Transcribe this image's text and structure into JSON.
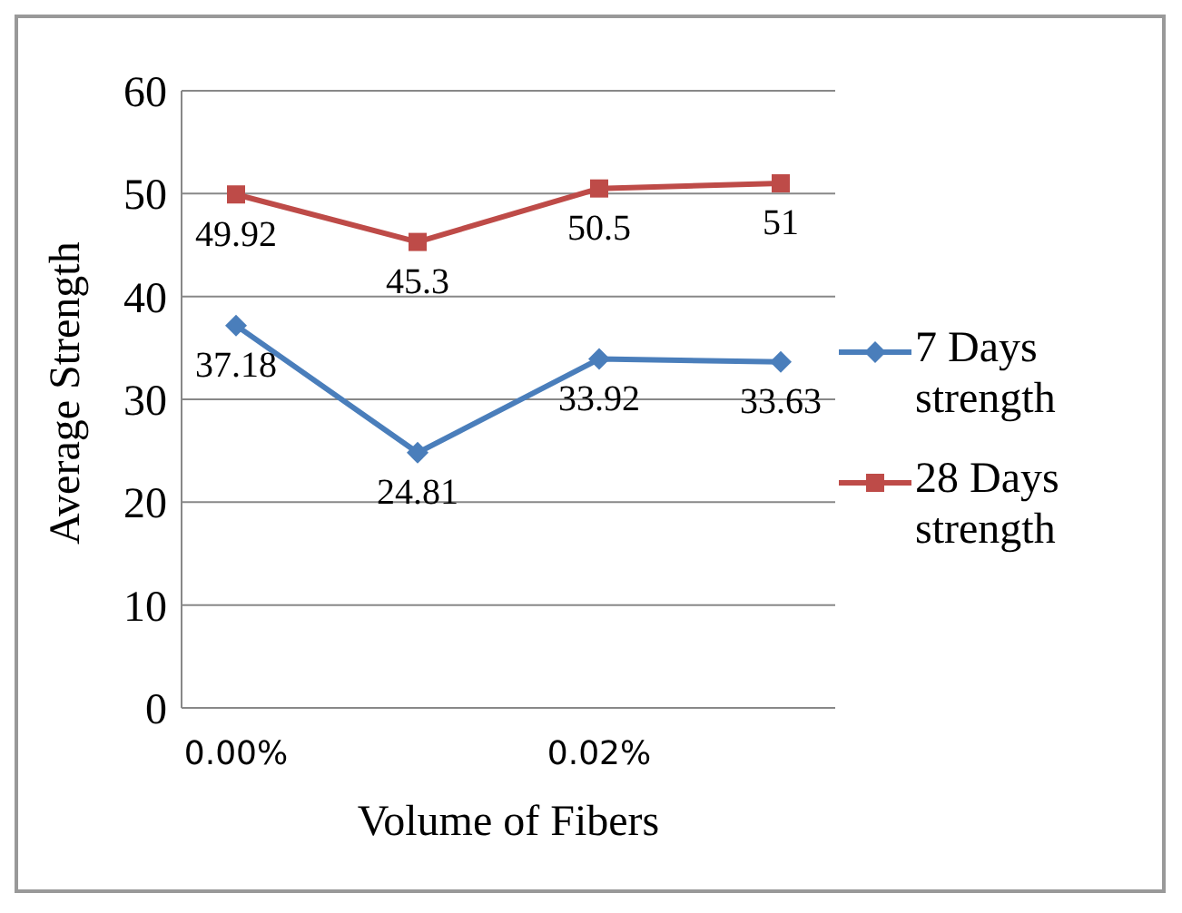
{
  "chart_data": {
    "type": "line",
    "xlabel": "Volume of Fibers",
    "ylabel": "Average  Strength",
    "categories": [
      "0.00%",
      null,
      "0.02%",
      null
    ],
    "series": [
      {
        "name": "7 Days strength",
        "color": "#4a7ebb",
        "marker": "diamond",
        "values": [
          37.18,
          24.81,
          33.92,
          33.63
        ]
      },
      {
        "name": "28 Days strength",
        "color": "#be4b48",
        "marker": "square",
        "values": [
          49.92,
          45.3,
          50.5,
          51
        ]
      }
    ],
    "ylim": [
      0,
      60
    ],
    "yticks": [
      0,
      10,
      20,
      30,
      40,
      50,
      60
    ],
    "grid": "y",
    "legend": "right",
    "data_labels": true
  }
}
